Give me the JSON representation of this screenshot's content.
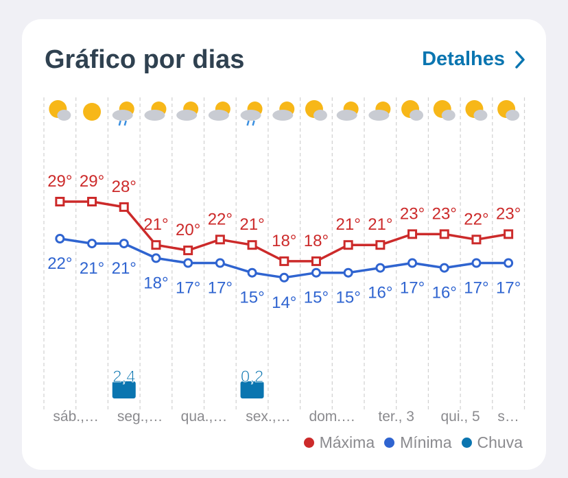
{
  "header": {
    "title": "Gráfico por dias",
    "details_label": "Detalhes"
  },
  "colors": {
    "max": "#cc2a2a",
    "min": "#2f64d0",
    "rain": "#0a75b0"
  },
  "chart_data": {
    "type": "line",
    "title": "Gráfico por dias",
    "days": 15,
    "icons": [
      "partly-sunny",
      "sunny",
      "rain",
      "partly-cloudy",
      "partly-cloudy",
      "partly-cloudy",
      "rain",
      "partly-cloudy",
      "partly-sunny",
      "partly-cloudy",
      "partly-cloudy",
      "partly-sunny",
      "partly-sunny",
      "partly-sunny",
      "partly-sunny"
    ],
    "x_labels": [
      "sáb.,…",
      "seg.,…",
      "qua.,…",
      "sex.,…",
      "dom.…",
      "ter., 3",
      "qui., 5",
      "s…"
    ],
    "series": [
      {
        "name": "Máxima",
        "values": [
          29,
          29,
          28,
          21,
          20,
          22,
          21,
          18,
          18,
          21,
          21,
          23,
          23,
          22,
          23
        ],
        "labels": [
          "29°",
          "29°",
          "28°",
          "21°",
          "20°",
          "22°",
          "21°",
          "18°",
          "18°",
          "21°",
          "21°",
          "23°",
          "23°",
          "22°",
          "23°"
        ]
      },
      {
        "name": "Mínima",
        "values": [
          22,
          21,
          21,
          18,
          17,
          17,
          15,
          14,
          15,
          15,
          16,
          17,
          16,
          17,
          17
        ],
        "labels": [
          "22°",
          "21°",
          "21°",
          "18°",
          "17°",
          "17°",
          "15°",
          "14°",
          "15°",
          "15°",
          "16°",
          "17°",
          "16°",
          "17°",
          "17°"
        ]
      },
      {
        "name": "Chuva",
        "values": [
          null,
          null,
          2.4,
          null,
          null,
          null,
          0.2,
          null,
          null,
          null,
          null,
          null,
          null,
          null,
          null
        ],
        "labels": [
          "",
          "",
          "2,4",
          "",
          "",
          "",
          "0,2",
          "",
          "",
          "",
          "",
          "",
          "",
          "",
          ""
        ]
      }
    ],
    "legend": [
      "Máxima",
      "Mínima",
      "Chuva"
    ],
    "legend_position": "bottom-right"
  }
}
